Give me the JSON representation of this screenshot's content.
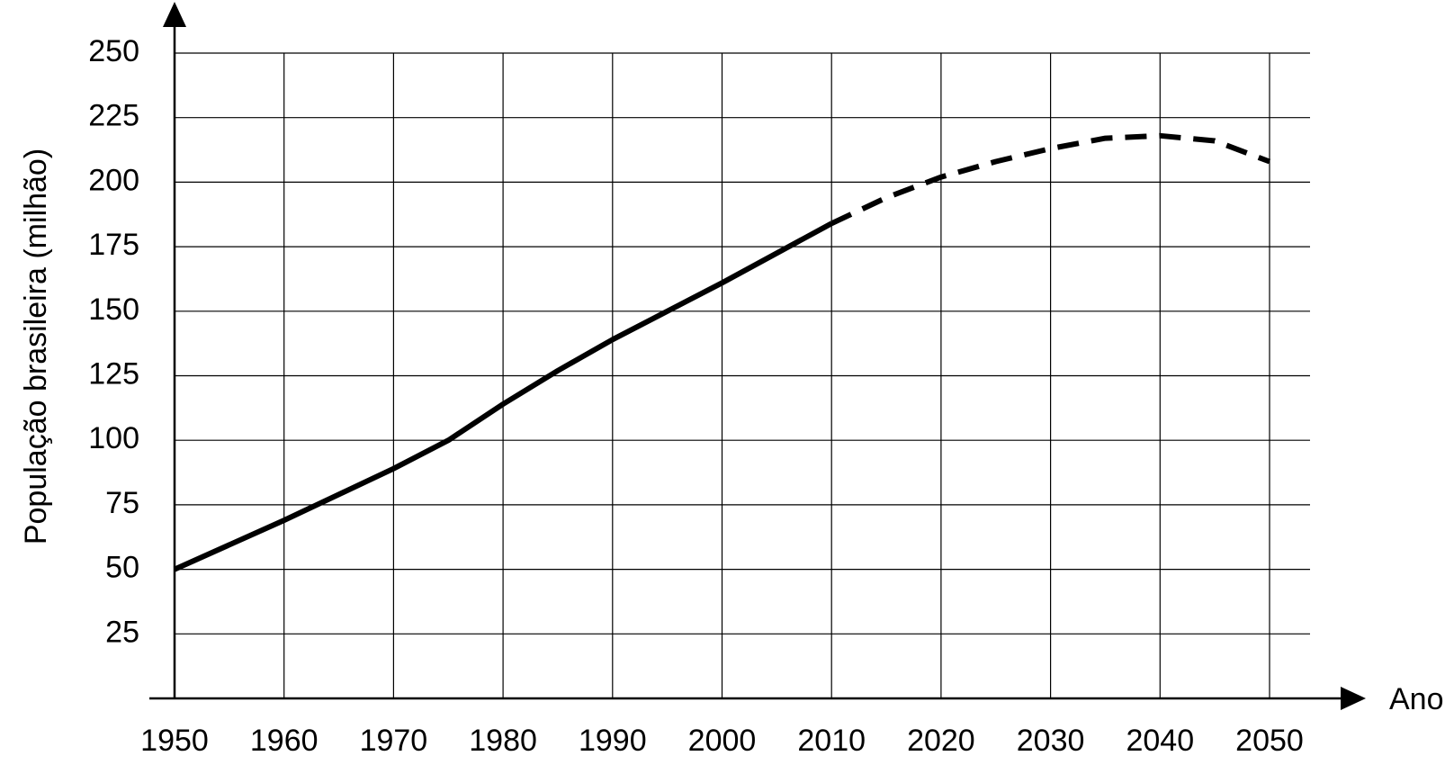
{
  "chart_data": {
    "type": "line",
    "title": "",
    "xlabel": "Ano",
    "ylabel": "População brasileira (milhão)",
    "x_ticks": [
      "1950",
      "1960",
      "1970",
      "1980",
      "1990",
      "2000",
      "2010",
      "2020",
      "2030",
      "2040",
      "2050"
    ],
    "y_ticks": [
      "25",
      "50",
      "75",
      "100",
      "125",
      "150",
      "175",
      "200",
      "225",
      "250"
    ],
    "xlim": [
      1950,
      2050
    ],
    "ylim": [
      0,
      250
    ],
    "grid": true,
    "legend": "none",
    "series": [
      {
        "style": "solid",
        "x": [
          1950,
          1960,
          1970,
          1975,
          1980,
          1985,
          1990,
          2000,
          2010
        ],
        "y": [
          50,
          69,
          89,
          100,
          114,
          127,
          139,
          161,
          184
        ]
      },
      {
        "style": "dashed",
        "x": [
          2010,
          2015,
          2020,
          2025,
          2030,
          2035,
          2040,
          2045,
          2050
        ],
        "y": [
          184,
          194,
          202,
          208,
          213,
          217,
          218,
          216,
          208
        ]
      }
    ]
  }
}
